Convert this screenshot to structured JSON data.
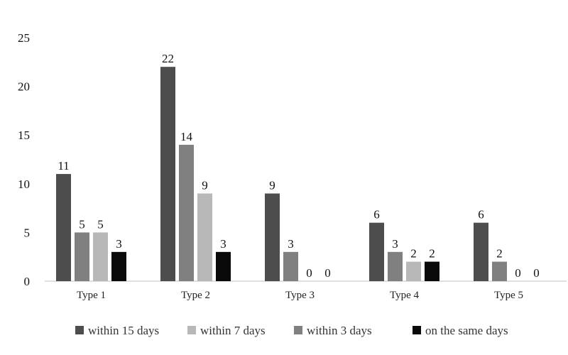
{
  "chart_data": {
    "type": "bar",
    "categories": [
      "Type 1",
      "Type 2",
      "Type 3",
      "Type 4",
      "Type 5"
    ],
    "series": [
      {
        "name": "within 15 days",
        "color": "#4d4d4d",
        "values": [
          11,
          22,
          9,
          6,
          6
        ]
      },
      {
        "name": "within 3 days",
        "color": "#808080",
        "values": [
          5,
          14,
          3,
          3,
          2
        ]
      },
      {
        "name": "within 7 days",
        "color": "#b8b8b8",
        "values": [
          5,
          9,
          0,
          2,
          0
        ]
      },
      {
        "name": "on the same days",
        "color": "#0a0a0a",
        "values": [
          3,
          3,
          0,
          2,
          0
        ]
      }
    ],
    "legend_order": [
      "within 15 days",
      "within 7 days",
      "within 3 days",
      "on the same days"
    ],
    "yticks": [
      0,
      5,
      10,
      15,
      20,
      25
    ],
    "ylim": [
      0,
      25
    ],
    "grid": false,
    "legend_position": "bottom",
    "title": "",
    "xlabel": "",
    "ylabel": ""
  }
}
